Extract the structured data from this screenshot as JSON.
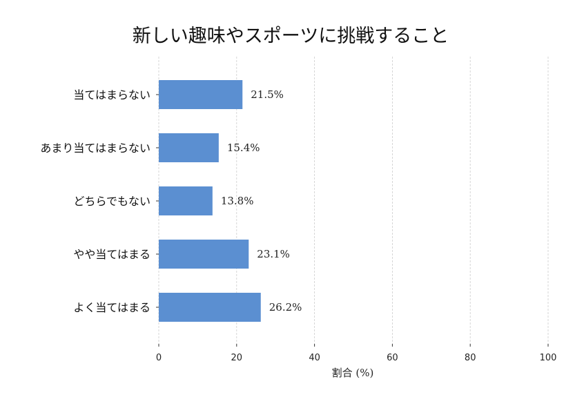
{
  "chart_data": {
    "type": "bar",
    "orientation": "horizontal",
    "title": "新しい趣味やスポーツに挑戦すること",
    "xlabel": "割合 (%)",
    "ylabel": "",
    "categories": [
      "当てはまらない",
      "あまり当てはまらない",
      "どちらでもない",
      "やや当てはまる",
      "よく当てはまる"
    ],
    "values": [
      21.5,
      15.4,
      13.8,
      23.1,
      26.2
    ],
    "data_labels": [
      "21.5%",
      "15.4%",
      "13.8%",
      "23.1%",
      "26.2%"
    ],
    "xlim": [
      0,
      100
    ],
    "xticks": [
      0,
      20,
      40,
      60,
      80,
      100
    ],
    "xtick_labels": [
      "0",
      "20",
      "40",
      "60",
      "80",
      "100"
    ],
    "grid": "vertical dashed",
    "legend": "none",
    "bar_color": "#5b8fd1"
  }
}
